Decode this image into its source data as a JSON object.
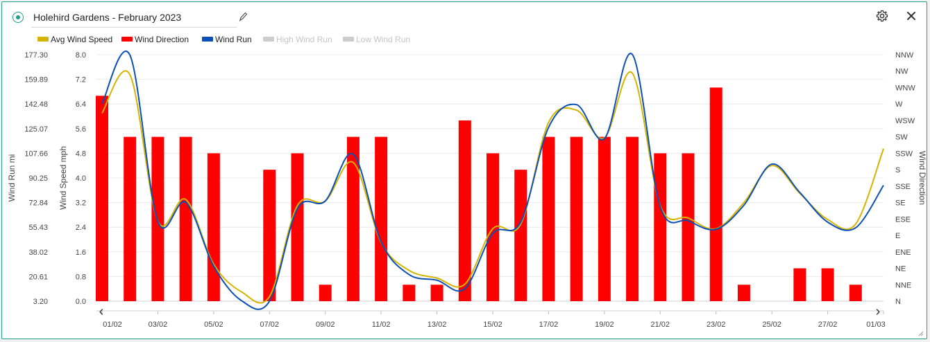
{
  "header": {
    "title": "Holehird Gardens - February 2023"
  },
  "legend": {
    "items": [
      {
        "label": "Avg Wind Speed",
        "color": "#d4b400",
        "enabled": true
      },
      {
        "label": "Wind Direction",
        "color": "#ff0000",
        "enabled": true
      },
      {
        "label": "Wind Run",
        "color": "#0a4fb5",
        "enabled": true
      },
      {
        "label": "High Wind Run",
        "color": "#cccccc",
        "enabled": false
      },
      {
        "label": "Low Wind Run",
        "color": "#cccccc",
        "enabled": false
      }
    ]
  },
  "nav": {
    "prev": "‹",
    "next": "›"
  },
  "colors": {
    "accent": "#1e9e8c",
    "windSpeed": "#d4b400",
    "windDirection": "#ff0000",
    "windRun": "#0a4fb5",
    "disabled": "#cccccc"
  },
  "chart_data": {
    "type": "bar",
    "title": "Holehird Gardens - February 2023",
    "categories": [
      "01/02",
      "02/02",
      "03/02",
      "04/02",
      "05/02",
      "06/02",
      "07/02",
      "08/02",
      "09/02",
      "10/02",
      "11/02",
      "12/02",
      "13/02",
      "14/02",
      "15/02",
      "16/02",
      "17/02",
      "18/02",
      "19/02",
      "20/02",
      "21/02",
      "22/02",
      "23/02",
      "24/02",
      "25/02",
      "26/02",
      "27/02",
      "28/02",
      "01/03"
    ],
    "xticks": [
      "01/02",
      "03/02",
      "05/02",
      "07/02",
      "09/02",
      "11/02",
      "13/02",
      "15/02",
      "17/02",
      "19/02",
      "21/02",
      "23/02",
      "25/02",
      "27/02",
      "01/03"
    ],
    "axes": {
      "windRun": {
        "label": "Wind Run mi",
        "ticks": [
          "3.20",
          "20.61",
          "38.02",
          "55.43",
          "72.84",
          "90.25",
          "107.66",
          "125.07",
          "142.48",
          "159.89",
          "177.30"
        ],
        "min": 3.2,
        "max": 177.3
      },
      "windSpeed": {
        "label": "Wind Speed mph",
        "ticks": [
          "0.0",
          "0.8",
          "1.6",
          "2.4",
          "3.2",
          "4.0",
          "4.8",
          "5.6",
          "6.4",
          "7.2",
          "8.0"
        ],
        "min": 0,
        "max": 8
      },
      "windDirection": {
        "label": "Wind Direction",
        "ticks": [
          "N",
          "NNE",
          "NE",
          "ENE",
          "E",
          "ESE",
          "SE",
          "SSE",
          "S",
          "SSW",
          "SW",
          "WSW",
          "W",
          "WNW",
          "NW",
          "NNW"
        ]
      }
    },
    "series": [
      {
        "name": "Wind Direction",
        "type": "bar",
        "axis": "windDirection",
        "values": [
          12.5,
          10,
          10,
          10,
          9,
          null,
          8,
          9,
          1,
          10,
          10,
          1,
          1,
          11,
          9,
          8,
          10,
          10,
          10,
          10,
          9,
          9,
          13,
          1,
          null,
          2,
          2,
          1,
          null
        ]
      },
      {
        "name": "Avg Wind Speed",
        "type": "line",
        "axis": "windSpeed",
        "values": [
          6.1,
          7.35,
          2.6,
          3.3,
          1.2,
          0.3,
          0.15,
          3.1,
          3.25,
          4.5,
          1.9,
          1.0,
          0.75,
          0.55,
          2.35,
          2.5,
          5.8,
          6.2,
          5.3,
          7.4,
          3.1,
          2.7,
          2.35,
          3.2,
          4.4,
          3.5,
          2.65,
          2.5,
          4.95
        ]
      },
      {
        "name": "Wind Run",
        "type": "line",
        "axis": "windRun",
        "values": [
          142.5,
          177.0,
          59.5,
          73.0,
          28.0,
          3.5,
          3.2,
          68.5,
          74.0,
          107.0,
          45.0,
          22.0,
          18.0,
          12.0,
          51.0,
          59.0,
          126.0,
          142.0,
          118.0,
          177.5,
          70.0,
          60.0,
          54.0,
          71.0,
          100.0,
          80.0,
          59.0,
          55.0,
          85.0
        ]
      }
    ],
    "grid": true,
    "legend_position": "top-left"
  }
}
